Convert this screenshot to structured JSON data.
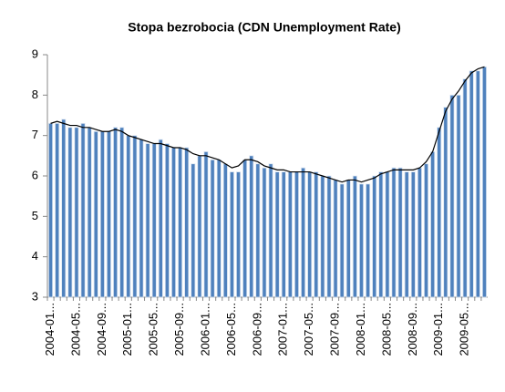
{
  "chart_data": {
    "type": "bar",
    "title": "Stopa bezrobocia (CDN Unemployment Rate)",
    "categories": [
      "2004-01...",
      null,
      null,
      null,
      "2004-05...",
      null,
      null,
      null,
      "2004-09...",
      null,
      null,
      null,
      "2005-01...",
      null,
      null,
      null,
      "2005-05...",
      null,
      null,
      null,
      "2005-09...",
      null,
      null,
      null,
      "2006-01...",
      null,
      null,
      null,
      "2006-05...",
      null,
      null,
      null,
      "2006-09...",
      null,
      null,
      null,
      "2007-01...",
      null,
      null,
      null,
      "2007-05...",
      null,
      null,
      null,
      "2007-09...",
      null,
      null,
      null,
      "2008-01...",
      null,
      null,
      null,
      "2008-05...",
      null,
      null,
      null,
      "2008-09...",
      null,
      null,
      null,
      "2009-01...",
      null,
      null,
      null,
      "2009-05...",
      null,
      null,
      null
    ],
    "series": [
      {
        "type": "bar",
        "color": "#4f81bd",
        "values": [
          7.3,
          7.3,
          7.4,
          7.2,
          7.2,
          7.3,
          7.2,
          7.1,
          7.1,
          7.1,
          7.2,
          7.2,
          7.0,
          7.0,
          6.9,
          6.8,
          6.8,
          6.9,
          6.8,
          6.7,
          6.7,
          6.7,
          6.3,
          6.5,
          6.6,
          6.4,
          6.4,
          6.3,
          6.1,
          6.1,
          6.4,
          6.5,
          6.3,
          6.2,
          6.3,
          6.1,
          6.1,
          6.1,
          6.1,
          6.2,
          6.1,
          6.1,
          6.0,
          6.0,
          5.9,
          5.8,
          5.9,
          6.0,
          5.8,
          5.8,
          6.0,
          6.1,
          6.1,
          6.2,
          6.2,
          6.1,
          6.1,
          6.2,
          6.3,
          6.6,
          7.2,
          7.7,
          8.0,
          8.0,
          8.4,
          8.6,
          8.6,
          8.7
        ]
      },
      {
        "type": "line",
        "color": "#000000",
        "values": [
          7.3,
          7.35,
          7.3,
          7.25,
          7.25,
          7.2,
          7.2,
          7.15,
          7.1,
          7.1,
          7.15,
          7.1,
          7.0,
          6.95,
          6.9,
          6.85,
          6.8,
          6.8,
          6.75,
          6.7,
          6.7,
          6.65,
          6.55,
          6.5,
          6.5,
          6.45,
          6.4,
          6.3,
          6.2,
          6.25,
          6.4,
          6.4,
          6.35,
          6.25,
          6.2,
          6.15,
          6.15,
          6.1,
          6.1,
          6.1,
          6.1,
          6.05,
          6.0,
          5.95,
          5.9,
          5.85,
          5.9,
          5.9,
          5.85,
          5.9,
          5.95,
          6.05,
          6.1,
          6.15,
          6.15,
          6.15,
          6.15,
          6.2,
          6.35,
          6.6,
          7.1,
          7.6,
          7.9,
          8.1,
          8.35,
          8.55,
          8.65,
          8.7
        ]
      }
    ],
    "ylim": [
      3,
      9
    ],
    "yticks": [
      3,
      4,
      5,
      6,
      7,
      8,
      9
    ],
    "grid": false
  }
}
